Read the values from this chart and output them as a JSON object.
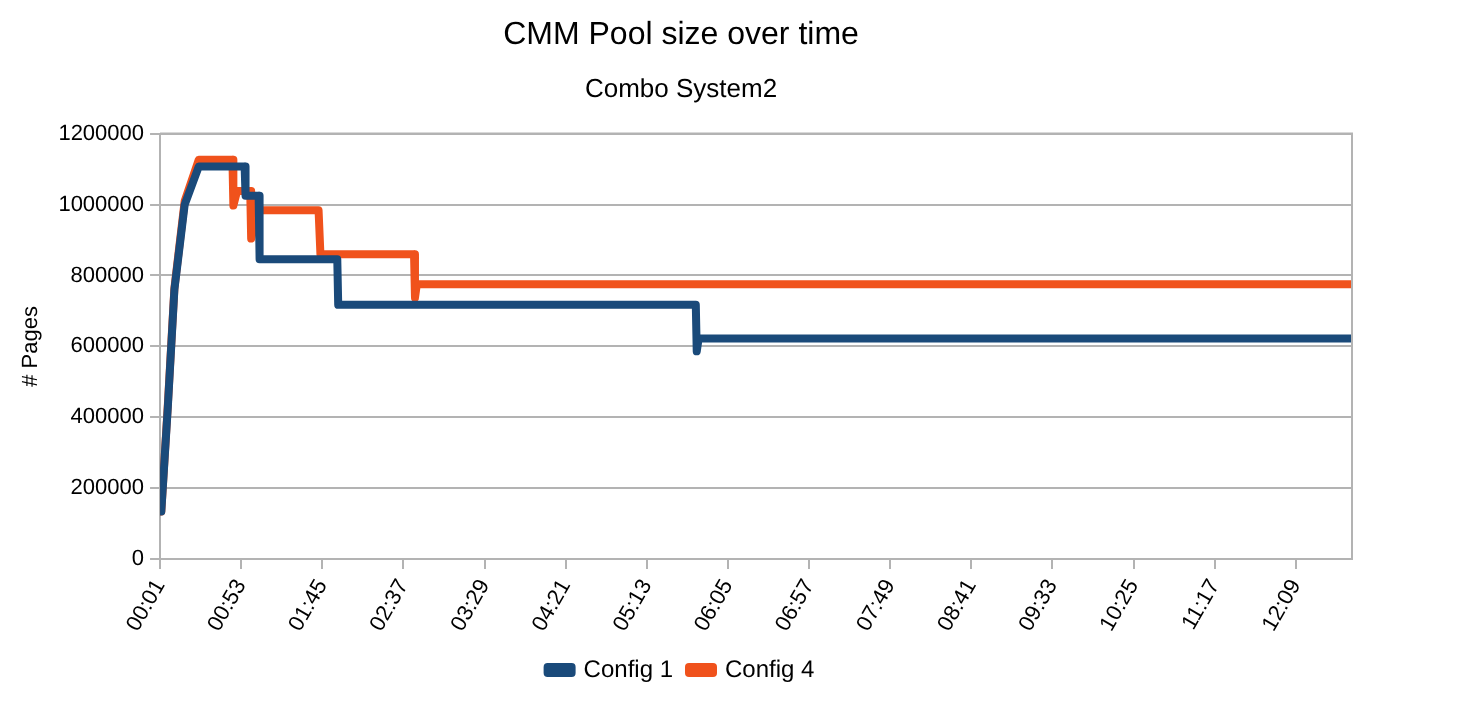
{
  "chart_data": {
    "type": "line",
    "title": "CMM Pool size over time",
    "subtitle": "Combo System2",
    "ylabel": "# Pages",
    "xlim": [
      0.0167,
      12.75
    ],
    "xticks": [
      {
        "value": 0.0167,
        "label": "00:01"
      },
      {
        "value": 0.8833,
        "label": "00:53"
      },
      {
        "value": 1.75,
        "label": "01:45"
      },
      {
        "value": 2.6167,
        "label": "02:37"
      },
      {
        "value": 3.4833,
        "label": "03:29"
      },
      {
        "value": 4.35,
        "label": "04:21"
      },
      {
        "value": 5.2167,
        "label": "05:13"
      },
      {
        "value": 6.0833,
        "label": "06:05"
      },
      {
        "value": 6.95,
        "label": "06:57"
      },
      {
        "value": 7.8167,
        "label": "07:49"
      },
      {
        "value": 8.6833,
        "label": "08:41"
      },
      {
        "value": 9.55,
        "label": "09:33"
      },
      {
        "value": 10.4167,
        "label": "10:25"
      },
      {
        "value": 11.2833,
        "label": "11:17"
      },
      {
        "value": 12.15,
        "label": "12:09"
      }
    ],
    "ylim": [
      0,
      1200000
    ],
    "yticks": [
      0,
      200000,
      400000,
      600000,
      800000,
      1000000,
      1200000
    ],
    "grid": "y",
    "legend": "bottom",
    "marker": "none",
    "line_style": "solid",
    "series": [
      {
        "name": "Config 1",
        "color": "#1a4a7a",
        "x": [
          0.03,
          0.1,
          0.17,
          0.28,
          0.43,
          0.92,
          0.93,
          1.07,
          1.08,
          1.91,
          1.92,
          5.74,
          5.75,
          5.77,
          12.75
        ],
        "values": [
          134000,
          430000,
          760000,
          1000000,
          1107000,
          1107000,
          1025000,
          1025000,
          846000,
          846000,
          717000,
          717000,
          586000,
          622000,
          622000
        ]
      },
      {
        "name": "Config 4",
        "color": "#f0521c",
        "x": [
          0.03,
          0.1,
          0.17,
          0.28,
          0.43,
          0.79,
          0.8,
          0.84,
          0.98,
          0.99,
          1.06,
          1.71,
          1.73,
          2.73,
          2.74,
          2.76,
          12.75
        ],
        "values": [
          134000,
          435000,
          764000,
          1010000,
          1126000,
          1126000,
          997000,
          1038000,
          1038000,
          904000,
          984000,
          984000,
          860000,
          860000,
          737000,
          775000,
          775000
        ]
      }
    ]
  }
}
